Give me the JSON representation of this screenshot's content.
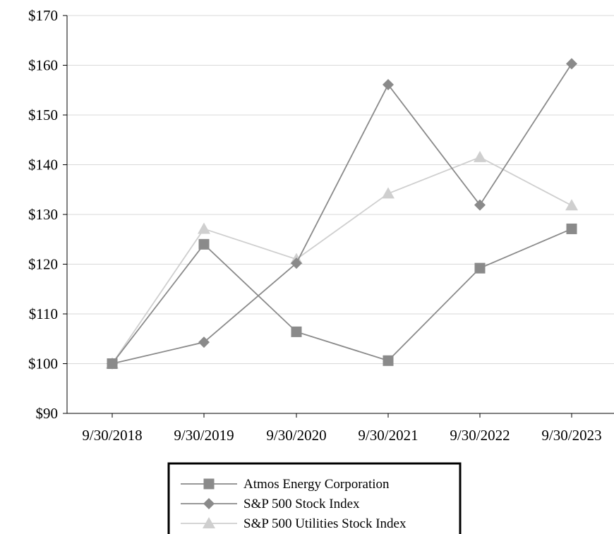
{
  "chart_data": {
    "type": "line",
    "categories": [
      "9/30/2018",
      "9/30/2019",
      "9/30/2020",
      "9/30/2021",
      "9/30/2022",
      "9/30/2023"
    ],
    "y_ticks": [
      "$90",
      "$100",
      "$110",
      "$120",
      "$130",
      "$140",
      "$150",
      "$160",
      "$170"
    ],
    "ylim": [
      90,
      170
    ],
    "y_step": 10,
    "grid": true,
    "legend_position": "bottom-center",
    "series": [
      {
        "name": "Atmos Energy Corporation",
        "marker": "square",
        "color": "#8a8a8a",
        "values": [
          100,
          124,
          106.4,
          100.6,
          119.2,
          127.1
        ]
      },
      {
        "name": "S&P 500 Stock Index",
        "marker": "diamond",
        "color": "#8a8a8a",
        "values": [
          100,
          104.3,
          120.2,
          156.1,
          131.9,
          160.3
        ]
      },
      {
        "name": "S&P 500 Utilities Stock Index",
        "marker": "triangle",
        "color": "#cfcfcf",
        "values": [
          100,
          127.1,
          121,
          134.2,
          141.5,
          131.8
        ]
      }
    ]
  }
}
